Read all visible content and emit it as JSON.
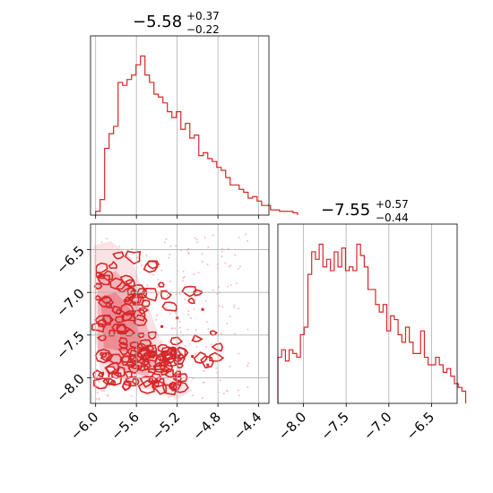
{
  "chart_data": {
    "type": "corner",
    "color": "#d62728",
    "grid": true,
    "panels": [
      {
        "id": "hist-param1",
        "type": "histogram",
        "title": {
          "median": "−5.58",
          "plus": "+0.37",
          "minus": "−0.22"
        },
        "xlim": [
          -6.05,
          -4.3
        ],
        "bins": {
          "start": -6.0,
          "width": 0.044,
          "counts": [
            2,
            10,
            45,
            55,
            60,
            90,
            88,
            92,
            95,
            102,
            108,
            95,
            90,
            82,
            80,
            76,
            70,
            66,
            70,
            58,
            62,
            52,
            54,
            40,
            42,
            38,
            36,
            32,
            30,
            25,
            20,
            20,
            17,
            15,
            11,
            12,
            9,
            6,
            6,
            3,
            3,
            2,
            2,
            2,
            1
          ]
        }
      },
      {
        "id": "contour-param1-param2",
        "type": "contour",
        "xlim": [
          -6.05,
          -4.3
        ],
        "ylim": [
          -8.3,
          -6.2
        ],
        "xticks": [
          "−6.0",
          "−5.6",
          "−5.2",
          "−4.8",
          "−4.4"
        ],
        "yticks": [
          "−6.5",
          "−7.0",
          "−7.5",
          "−8.0"
        ]
      },
      {
        "id": "hist-param2",
        "type": "histogram",
        "title": {
          "median": "−7.55",
          "plus": "+0.57",
          "minus": "−0.44"
        },
        "xlim": [
          -8.3,
          -6.2
        ],
        "xticks": [
          "−8.0",
          "−7.5",
          "−7.0",
          "−6.5"
        ],
        "bins": {
          "start": -8.3,
          "width": 0.044,
          "counts": [
            12,
            14,
            11,
            14,
            13,
            12,
            18,
            20,
            34,
            40,
            38,
            42,
            36,
            38,
            35,
            40,
            36,
            41,
            35,
            36,
            35,
            42,
            39,
            36,
            30,
            30,
            26,
            24,
            26,
            19,
            23,
            22,
            18,
            16,
            20,
            16,
            13,
            13,
            19,
            12,
            10,
            10,
            12,
            10,
            8,
            9,
            7,
            5,
            4,
            3
          ]
        }
      }
    ]
  }
}
